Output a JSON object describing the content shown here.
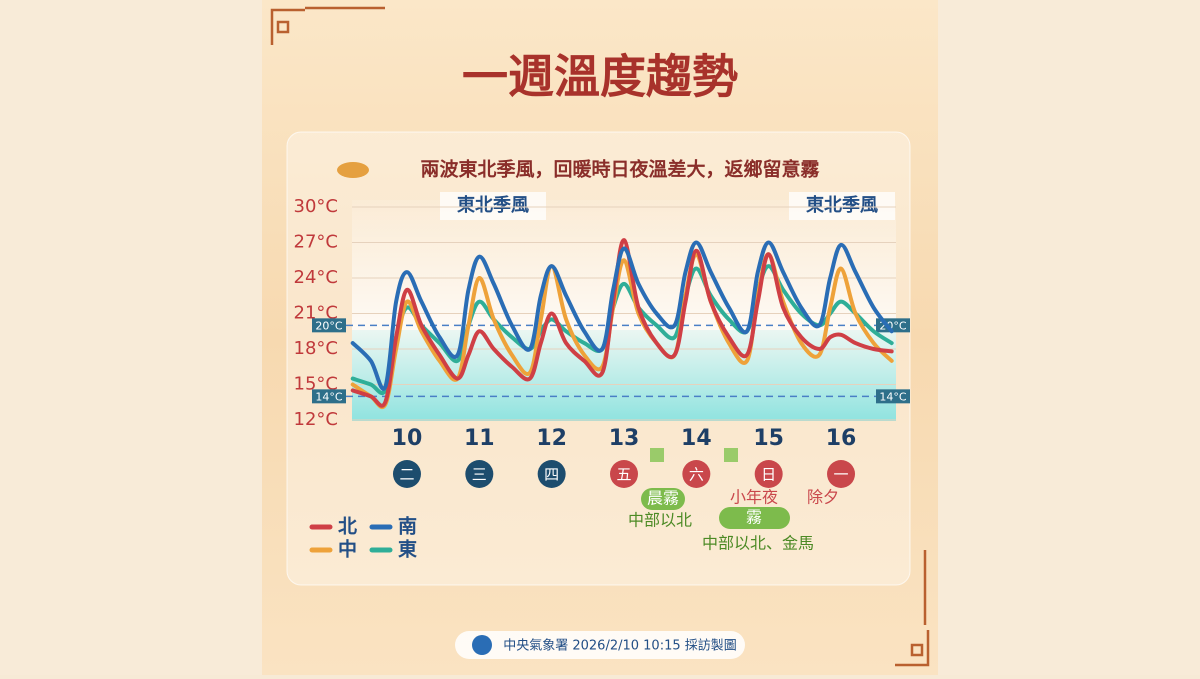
{
  "chart_data": {
    "type": "line",
    "title": "一週溫度趨勢",
    "subtitle": "兩波東北季風，回暖時日夜溫差大，返鄉留意霧",
    "monsoon_labels": [
      "東北季風",
      "東北季風"
    ],
    "xlim": [
      9.24,
      16.76
    ],
    "xticks": [
      10,
      11,
      12,
      13,
      14,
      15,
      16
    ],
    "ylim": [
      12,
      30
    ],
    "yticks": [
      {
        "value": 12,
        "label": "12°C"
      },
      {
        "value": 15,
        "label": "15°C"
      },
      {
        "value": 18,
        "label": "18°C"
      },
      {
        "value": 21,
        "label": "21°C"
      },
      {
        "value": 24,
        "label": "24°C"
      },
      {
        "value": 27,
        "label": "27°C"
      },
      {
        "value": 30,
        "label": "30°C"
      }
    ],
    "reference_lines": [
      {
        "value": 20,
        "label": "20°C"
      },
      {
        "value": 14,
        "label": "14°C"
      }
    ],
    "weekdays": [
      {
        "label": "二",
        "color": "#1d4d6e"
      },
      {
        "label": "三",
        "color": "#1d4d6e"
      },
      {
        "label": "四",
        "color": "#1d4d6e"
      },
      {
        "label": "五",
        "color": "#c9474b"
      },
      {
        "label": "六",
        "color": "#c9474b"
      },
      {
        "label": "日",
        "color": "#c9474b"
      },
      {
        "label": "一",
        "color": "#c9474b"
      }
    ],
    "annotations": {
      "fog_morning": "晨霧",
      "fog_morning_area": "中部以北",
      "eve": "小年夜",
      "new_year_eve": "除夕",
      "fog": "霧",
      "fog_area": "中部以北、金馬"
    },
    "x": [
      9.25,
      9.5,
      9.7,
      9.85,
      10,
      10.2,
      10.45,
      10.7,
      10.85,
      11,
      11.2,
      11.45,
      11.7,
      11.85,
      12,
      12.2,
      12.45,
      12.7,
      12.85,
      13,
      13.2,
      13.45,
      13.7,
      13.85,
      14,
      14.2,
      14.45,
      14.7,
      14.85,
      15,
      15.2,
      15.45,
      15.7,
      15.85,
      16,
      16.2,
      16.45,
      16.7
    ],
    "series": [
      {
        "name": "北",
        "color": "#cf3f45",
        "values": [
          14.5,
          14,
          13.5,
          19,
          23,
          20,
          17.5,
          15.5,
          17.5,
          19.5,
          18,
          16.5,
          15.5,
          18.5,
          21,
          18.5,
          17,
          16,
          22,
          27.2,
          21.5,
          18.5,
          17.5,
          22,
          26.3,
          22,
          19,
          17.5,
          22,
          26,
          21.5,
          19,
          18,
          19,
          19.2,
          18.5,
          18,
          17.8
        ]
      },
      {
        "name": "南",
        "color": "#2a6db5",
        "values": [
          18.5,
          17,
          14.8,
          22,
          24.5,
          22,
          19,
          17.5,
          23,
          25.8,
          23.5,
          20,
          18,
          22.5,
          25,
          22.5,
          19.5,
          18,
          23,
          26.5,
          23.5,
          21,
          20,
          24.5,
          27,
          24.5,
          21.5,
          19.5,
          24.5,
          27,
          24.5,
          21.5,
          20,
          24,
          26.8,
          24.5,
          21.5,
          19.5
        ]
      },
      {
        "name": "中",
        "color": "#eea23a",
        "values": [
          15,
          14,
          13.3,
          18,
          22,
          19.5,
          17,
          15.5,
          20,
          24,
          20.5,
          17.5,
          16,
          20.5,
          25,
          20.5,
          17.5,
          16.5,
          21.5,
          25.5,
          21,
          18.5,
          17.5,
          22.5,
          26,
          22,
          18.5,
          17,
          22.5,
          26,
          22,
          18.5,
          17.5,
          21.5,
          24.8,
          21,
          18.5,
          17
        ]
      },
      {
        "name": "東",
        "color": "#2fae98",
        "values": [
          15.5,
          15,
          14.5,
          19,
          21.5,
          20,
          18.5,
          17,
          20,
          22,
          20.5,
          19,
          18,
          19.5,
          20.5,
          19.5,
          18.5,
          18,
          21.5,
          23.5,
          21.5,
          20,
          19,
          22.5,
          24.8,
          22.5,
          20.5,
          19.5,
          23,
          25,
          23,
          21,
          20,
          21,
          22,
          21,
          19.5,
          18.5
        ]
      }
    ],
    "source": "中央氣象署 2026/2/10 10:15 採訪製圖"
  }
}
